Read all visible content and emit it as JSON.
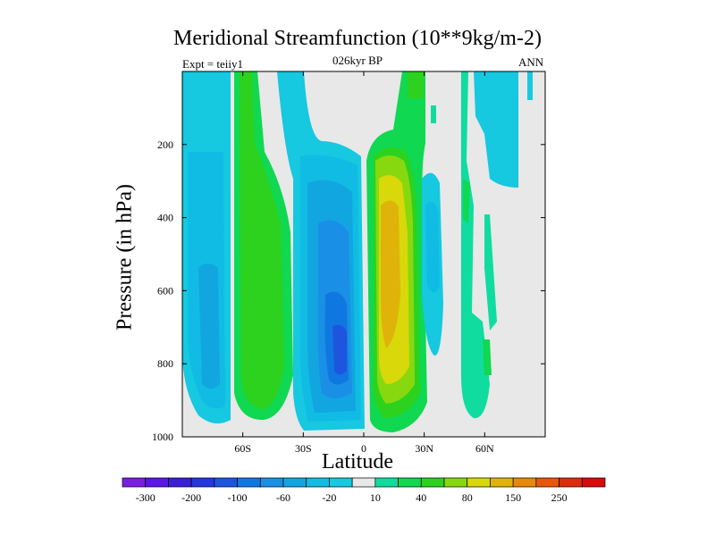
{
  "chart_data": {
    "type": "heatmap",
    "title": "Meridional Streamfunction (10**9kg/m-2)",
    "subtitle": "026kyr BP",
    "left_annotation": "Expt = teiiy1",
    "right_annotation": "ANN",
    "xlabel": "Latitude",
    "ylabel": "Pressure (in hPa)",
    "xlim": [
      -90,
      90
    ],
    "ylim": [
      1000,
      0
    ],
    "x_ticks": [
      {
        "value": -60,
        "label": "60S"
      },
      {
        "value": -30,
        "label": "30S"
      },
      {
        "value": 0,
        "label": "0"
      },
      {
        "value": 30,
        "label": "30N"
      },
      {
        "value": 60,
        "label": "60N"
      }
    ],
    "y_ticks": [
      {
        "value": 200,
        "label": "200"
      },
      {
        "value": 400,
        "label": "400"
      },
      {
        "value": 600,
        "label": "600"
      },
      {
        "value": 800,
        "label": "800"
      },
      {
        "value": 1000,
        "label": "1000"
      }
    ],
    "colorbar": {
      "levels": [
        -300,
        -250,
        -200,
        -150,
        -100,
        -80,
        -60,
        -40,
        -20,
        -10,
        10,
        20,
        40,
        60,
        80,
        100,
        150,
        200,
        250,
        300
      ],
      "labels": [
        {
          "after_box": 1,
          "label": "-300"
        },
        {
          "after_box": 3,
          "label": "-200"
        },
        {
          "after_box": 5,
          "label": "-100"
        },
        {
          "after_box": 7,
          "label": "-60"
        },
        {
          "after_box": 9,
          "label": "-20"
        },
        {
          "after_box": 11,
          "label": "10"
        },
        {
          "after_box": 13,
          "label": "40"
        },
        {
          "after_box": 15,
          "label": "80"
        },
        {
          "after_box": 17,
          "label": "150"
        },
        {
          "after_box": 19,
          "label": "250"
        }
      ],
      "colors": [
        "#7a1fe0",
        "#5a17e6",
        "#3a1fd6",
        "#2436e0",
        "#1e55de",
        "#0f78e0",
        "#1a8fe6",
        "#12a6e0",
        "#10bce4",
        "#16c8e0",
        "#e8e8e8",
        "#10dca0",
        "#10d850",
        "#2dd21e",
        "#88d810",
        "#d8d80a",
        "#e0b30a",
        "#e8880a",
        "#e8560a",
        "#dc2c0a",
        "#d80a0a"
      ]
    },
    "features": [
      {
        "name": "southern-polar-cell",
        "region": "65S-85S",
        "value_range": [
          -60,
          -10
        ]
      },
      {
        "name": "southern-ferrel-cell",
        "region": "40S-65S",
        "value_range": [
          10,
          40
        ]
      },
      {
        "name": "southern-hadley-cell",
        "region": "0-30S",
        "value_range": [
          -100,
          -10
        ],
        "core": [
          -15,
          780
        ]
      },
      {
        "name": "northern-hadley-cell",
        "region": "0-25N",
        "value_range": [
          10,
          150
        ],
        "core": [
          10,
          450
        ]
      },
      {
        "name": "northern-ferrel-cell",
        "region": "30N-40N",
        "value_range": [
          -40,
          -10
        ]
      },
      {
        "name": "northern-polar-cell",
        "region": "45N-65N",
        "value_range": [
          10,
          40
        ]
      }
    ]
  }
}
